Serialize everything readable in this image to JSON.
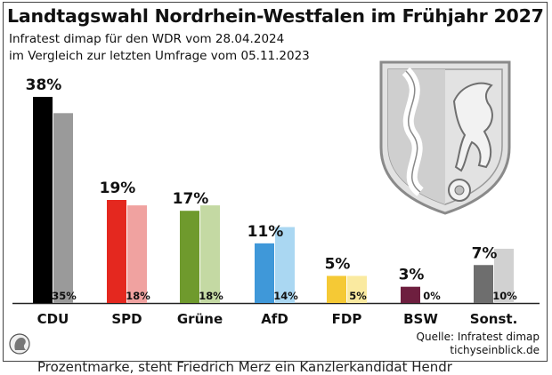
{
  "header": {
    "title": "Landtagswahl Nordrhein-Westfalen im Frühjahr 2027",
    "subtitle_line1": "Infratest dimap für den WDR vom 28.04.2024",
    "subtitle_line2": "im Vergleich zur letzten Umfrage vom 05.11.2023"
  },
  "source": {
    "line1": "Quelle: Infratest dimap",
    "line2": "tichyseinblick.de"
  },
  "footer": {
    "cut_text": "Prozentmarke, steht Friedrich Merz ein Kanzlerkandidat Hendr"
  },
  "chart_data": {
    "type": "bar",
    "title": "Landtagswahl Nordrhein-Westfalen im Frühjahr 2027",
    "xlabel": "",
    "ylabel": "",
    "ylim": [
      0,
      40
    ],
    "categories": [
      "CDU",
      "SPD",
      "Grüne",
      "AfD",
      "FDP",
      "BSW",
      "Sonst."
    ],
    "series": [
      {
        "name": "Umfrage 28.04.2024",
        "values": [
          38,
          19,
          17,
          11,
          5,
          3,
          7
        ],
        "labels": [
          "38%",
          "19%",
          "17%",
          "11%",
          "5%",
          "3%",
          "7%"
        ]
      },
      {
        "name": "Umfrage 05.11.2023",
        "values": [
          35,
          18,
          18,
          14,
          5,
          0,
          10
        ],
        "labels": [
          "35%",
          "18%",
          "18%",
          "14%",
          "5%",
          "0%",
          "10%"
        ]
      }
    ],
    "colors": {
      "current": [
        "#000000",
        "#e4281f",
        "#6f9a2d",
        "#3f98d9",
        "#f5c935",
        "#6e1f3f",
        "#6e6e6e"
      ],
      "previous": [
        "#9a9a9a",
        "#f0a2a0",
        "#c4d9a3",
        "#aad7f2",
        "#faeaa0",
        "#d3bcc8",
        "#d1d1d1"
      ]
    }
  },
  "emblem": {
    "description_name": "nrw-coat-of-arms",
    "colors": {
      "fill": "#dcdcdc",
      "stroke": "#8a8a8a"
    }
  }
}
